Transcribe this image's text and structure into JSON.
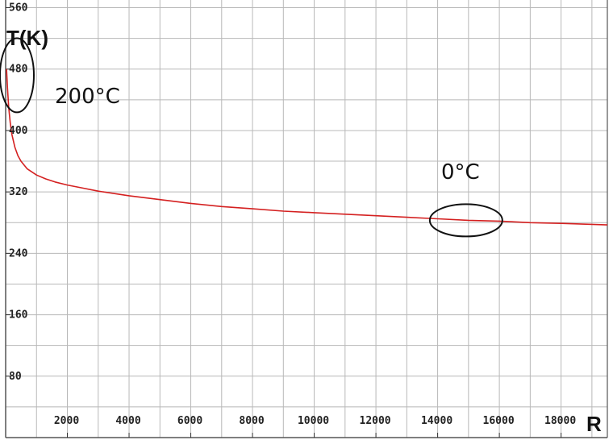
{
  "chart_data": {
    "type": "line",
    "title": "",
    "xlabel": "R",
    "ylabel": "T(K)",
    "xlim": [
      0,
      19500
    ],
    "ylim": [
      0,
      570
    ],
    "x_ticks": [
      2000,
      4000,
      6000,
      8000,
      10000,
      12000,
      14000,
      16000,
      18000
    ],
    "y_ticks": [
      80,
      160,
      240,
      320,
      400,
      480,
      560
    ],
    "grid": true,
    "legend": "none",
    "series": [
      {
        "color": "#d42020",
        "x": [
          30,
          60,
          100,
          150,
          200,
          300,
          400,
          500,
          700,
          1000,
          1300,
          1600,
          2000,
          2500,
          3000,
          4000,
          5000,
          6000,
          7000,
          8000,
          9000,
          10000,
          11000,
          12000,
          13000,
          14000,
          15000,
          16000,
          17000,
          18000,
          19500
        ],
        "y": [
          480,
          455,
          430,
          410,
          395,
          378,
          367,
          360,
          350,
          342,
          337,
          333,
          329,
          325,
          321,
          315,
          310,
          305,
          301,
          298,
          295,
          293,
          291,
          289,
          287,
          285,
          283,
          282,
          280,
          279,
          277
        ]
      }
    ],
    "annotations": [
      {
        "text": "200°C",
        "x": 200,
        "y": 473
      },
      {
        "text": "0°C",
        "x": 15000,
        "y": 283
      }
    ]
  },
  "colors": {
    "grid": "#b8b8b8",
    "axis": "#555555",
    "ellipse": "#111111"
  }
}
